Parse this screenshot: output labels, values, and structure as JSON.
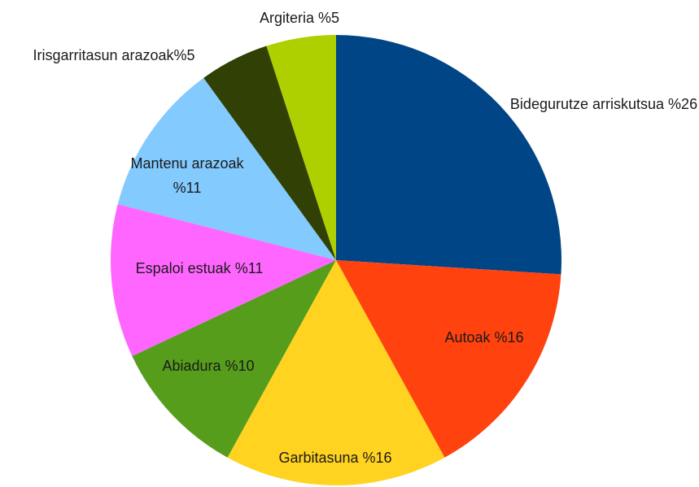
{
  "chart_data": {
    "type": "pie",
    "categories": [
      "Bidegurutze arriskutsua",
      "Autoak",
      "Garbitasuna",
      "Abiadura",
      "Espaloi estuak",
      "Mantenu arazoak",
      "Irisgarritasun arazoak",
      "Argiteria"
    ],
    "values": [
      26,
      16,
      16,
      10,
      11,
      11,
      5,
      5
    ],
    "value_labels": [
      "%26",
      "%16",
      "%16",
      "%10",
      "%11",
      "%11",
      "%5",
      "%5"
    ],
    "colors": [
      "#004586",
      "#ff420e",
      "#ffd320",
      "#579d1c",
      "#ff66ff",
      "#83caff",
      "#314004",
      "#aecf00"
    ]
  }
}
